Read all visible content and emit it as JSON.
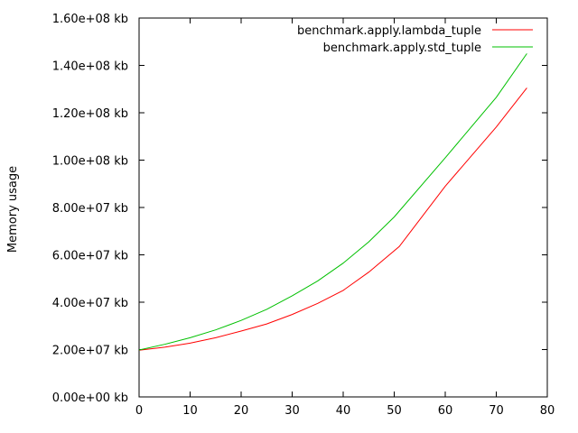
{
  "chart_data": {
    "type": "line",
    "title": "",
    "xlabel": "",
    "ylabel": "Memory usage",
    "xlim": [
      0,
      80
    ],
    "ylim": [
      0,
      160000000
    ],
    "x_ticks": [
      0,
      10,
      20,
      30,
      40,
      50,
      60,
      70,
      80
    ],
    "x_tick_labels": [
      "0",
      "10",
      "20",
      "30",
      "40",
      "50",
      "60",
      "70",
      "80"
    ],
    "y_ticks": [
      0,
      20000000,
      40000000,
      60000000,
      80000000,
      100000000,
      120000000,
      140000000,
      160000000
    ],
    "y_tick_labels": [
      "0.00e+00 kb",
      "2.00e+07 kb",
      "4.00e+07 kb",
      "6.00e+07 kb",
      "8.00e+07 kb",
      "1.00e+08 kb",
      "1.20e+08 kb",
      "1.40e+08 kb",
      "1.60e+08 kb"
    ],
    "grid": false,
    "legend_position": "top-right",
    "series": [
      {
        "name": "benchmark.apply.lambda_tuple",
        "color": "#ff0000",
        "x": [
          0,
          5,
          10,
          15,
          20,
          25,
          30,
          35,
          40,
          45,
          51,
          60,
          70,
          76
        ],
        "y": [
          19700000,
          21000000,
          22700000,
          25000000,
          27800000,
          30800000,
          34800000,
          39500000,
          45000000,
          52700000,
          63500000,
          89000000,
          114000000,
          130500000
        ]
      },
      {
        "name": "benchmark.apply.std_tuple",
        "color": "#00c000",
        "x": [
          0,
          5,
          10,
          15,
          20,
          25,
          30,
          35,
          40,
          45,
          50,
          60,
          70,
          76
        ],
        "y": [
          19800000,
          22200000,
          25000000,
          28300000,
          32300000,
          37000000,
          42700000,
          49000000,
          56500000,
          65500000,
          76000000,
          101000000,
          126500000,
          145000000
        ]
      }
    ]
  }
}
